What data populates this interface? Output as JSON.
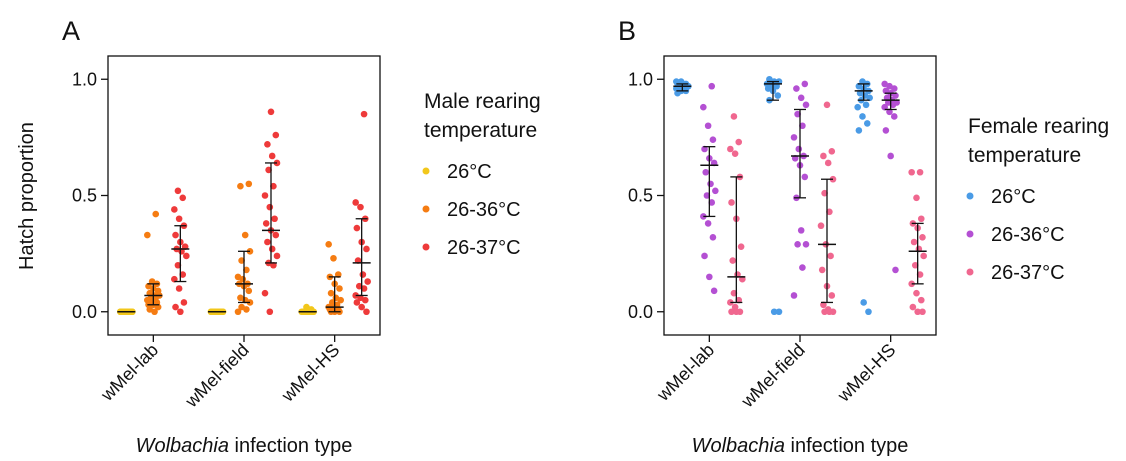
{
  "chart_data": [
    {
      "type": "scatter",
      "panel_label": "A",
      "xlabel": "Wolbachia infection type",
      "xlabel_italic_part": "Wolbachia",
      "xlabel_rest": " infection type",
      "ylabel": "Hatch proportion",
      "ylim": [
        -0.1,
        1.1
      ],
      "yticks": [
        0.0,
        0.5,
        1.0
      ],
      "ytick_labels": [
        "0.0",
        "0.5",
        "1.0"
      ],
      "categories": [
        "wMel-lab",
        "wMel-field",
        "wMel-HS"
      ],
      "legend_title": [
        "Male rearing",
        "temperature"
      ],
      "legend_placement": "right",
      "series": [
        {
          "name": "26°C",
          "color": "#f2c71b",
          "median": [
            0.0,
            0.0,
            0.0
          ],
          "iqr": [
            [
              0.0,
              0.0
            ],
            [
              0.0,
              0.0
            ],
            [
              0.0,
              0.0
            ]
          ],
          "points": [
            [
              0,
              0,
              0,
              0,
              0,
              0,
              0,
              0,
              0,
              0,
              0,
              0,
              0,
              0,
              0,
              0,
              0,
              0,
              0,
              0
            ],
            [
              0,
              0,
              0,
              0,
              0,
              0,
              0,
              0,
              0,
              0,
              0,
              0,
              0,
              0,
              0,
              0,
              0,
              0,
              0,
              0
            ],
            [
              0.02,
              0.01,
              0,
              0,
              0,
              0,
              0,
              0,
              0,
              0,
              0,
              0,
              0,
              0,
              0,
              0,
              0,
              0
            ]
          ]
        },
        {
          "name": "26-36°C",
          "color": "#f57c12",
          "median": [
            0.07,
            0.12,
            0.02
          ],
          "iqr": [
            [
              0.03,
              0.12
            ],
            [
              0.04,
              0.26
            ],
            [
              0.0,
              0.15
            ]
          ],
          "points": [
            [
              0.42,
              0.33,
              0.13,
              0.12,
              0.11,
              0.1,
              0.09,
              0.08,
              0.07,
              0.07,
              0.06,
              0.06,
              0.05,
              0.05,
              0.04,
              0.03,
              0.03,
              0.02,
              0.01,
              0.0
            ],
            [
              0.55,
              0.54,
              0.33,
              0.26,
              0.22,
              0.18,
              0.15,
              0.14,
              0.12,
              0.12,
              0.11,
              0.09,
              0.06,
              0.05,
              0.04,
              0.02,
              0.01,
              0.0
            ],
            [
              0.29,
              0.23,
              0.16,
              0.15,
              0.12,
              0.1,
              0.08,
              0.06,
              0.05,
              0.04,
              0.03,
              0.02,
              0.02,
              0.01,
              0.01,
              0.0,
              0.0,
              0.0
            ]
          ]
        },
        {
          "name": "26-37°C",
          "color": "#ee3a3a",
          "median": [
            0.27,
            0.35,
            0.21
          ],
          "iqr": [
            [
              0.13,
              0.37
            ],
            [
              0.21,
              0.64
            ],
            [
              0.07,
              0.4
            ]
          ],
          "points": [
            [
              0.52,
              0.49,
              0.44,
              0.4,
              0.37,
              0.33,
              0.3,
              0.28,
              0.27,
              0.26,
              0.24,
              0.2,
              0.16,
              0.14,
              0.1,
              0.04,
              0.02,
              0.0
            ],
            [
              0.86,
              0.76,
              0.72,
              0.67,
              0.64,
              0.61,
              0.54,
              0.5,
              0.45,
              0.4,
              0.38,
              0.35,
              0.33,
              0.3,
              0.27,
              0.24,
              0.21,
              0.2,
              0.08,
              0.0
            ],
            [
              0.85,
              0.47,
              0.45,
              0.4,
              0.36,
              0.3,
              0.27,
              0.22,
              0.16,
              0.13,
              0.11,
              0.1,
              0.07,
              0.06,
              0.05,
              0.04,
              0.02,
              0.0
            ]
          ]
        }
      ]
    },
    {
      "type": "scatter",
      "panel_label": "B",
      "xlabel": "Wolbachia infection type",
      "xlabel_italic_part": "Wolbachia",
      "xlabel_rest": " infection type",
      "ylabel": "",
      "ylim": [
        -0.1,
        1.1
      ],
      "yticks": [
        0.0,
        0.5,
        1.0
      ],
      "ytick_labels": [
        "0.0",
        "0.5",
        "1.0"
      ],
      "categories": [
        "wMel-lab",
        "wMel-field",
        "wMel-HS"
      ],
      "legend_title": [
        "Female rearing",
        "temperature"
      ],
      "legend_placement": "right",
      "series": [
        {
          "name": "26°C",
          "color": "#4a9be6",
          "median": [
            0.97,
            0.98,
            0.95
          ],
          "iqr": [
            [
              0.95,
              0.98
            ],
            [
              0.91,
              0.99
            ],
            [
              0.91,
              0.98
            ]
          ],
          "points": [
            [
              0.99,
              0.99,
              0.98,
              0.98,
              0.98,
              0.97,
              0.97,
              0.97,
              0.97,
              0.96,
              0.96,
              0.96,
              0.95,
              0.95,
              0.94,
              0.98,
              0.97,
              0.96
            ],
            [
              1.0,
              0.99,
              0.99,
              0.98,
              0.98,
              0.98,
              0.97,
              0.97,
              0.96,
              0.95,
              0.93,
              0.91,
              0.0,
              0.0
            ],
            [
              0.99,
              0.98,
              0.97,
              0.96,
              0.95,
              0.94,
              0.93,
              0.92,
              0.91,
              0.89,
              0.88,
              0.84,
              0.81,
              0.78,
              0.04,
              0.0
            ]
          ]
        },
        {
          "name": "26-36°C",
          "color": "#b450d3",
          "median": [
            0.63,
            0.67,
            0.91
          ],
          "iqr": [
            [
              0.41,
              0.71
            ],
            [
              0.49,
              0.87
            ],
            [
              0.87,
              0.94
            ]
          ],
          "points": [
            [
              0.97,
              0.88,
              0.8,
              0.74,
              0.7,
              0.66,
              0.64,
              0.6,
              0.55,
              0.52,
              0.5,
              0.47,
              0.41,
              0.38,
              0.32,
              0.24,
              0.15,
              0.09
            ],
            [
              0.98,
              0.96,
              0.92,
              0.89,
              0.85,
              0.8,
              0.75,
              0.7,
              0.67,
              0.66,
              0.63,
              0.58,
              0.49,
              0.35,
              0.29,
              0.29,
              0.19,
              0.07
            ],
            [
              0.98,
              0.97,
              0.96,
              0.95,
              0.94,
              0.93,
              0.92,
              0.91,
              0.9,
              0.9,
              0.89,
              0.88,
              0.86,
              0.84,
              0.78,
              0.67,
              0.18
            ]
          ]
        },
        {
          "name": "26-37°C",
          "color": "#f0678f",
          "median": [
            0.15,
            0.29,
            0.26
          ],
          "iqr": [
            [
              0.04,
              0.58
            ],
            [
              0.04,
              0.57
            ],
            [
              0.12,
              0.38
            ]
          ],
          "points": [
            [
              0.84,
              0.73,
              0.7,
              0.68,
              0.58,
              0.47,
              0.4,
              0.28,
              0.22,
              0.16,
              0.14,
              0.08,
              0.05,
              0.04,
              0.02,
              0.0,
              0.0,
              0.0
            ],
            [
              0.89,
              0.69,
              0.67,
              0.64,
              0.57,
              0.51,
              0.43,
              0.37,
              0.29,
              0.24,
              0.18,
              0.11,
              0.07,
              0.03,
              0.01,
              0.0,
              0.0,
              0.0
            ],
            [
              0.6,
              0.6,
              0.49,
              0.4,
              0.38,
              0.36,
              0.32,
              0.3,
              0.27,
              0.24,
              0.2,
              0.16,
              0.12,
              0.08,
              0.05,
              0.02,
              0.0,
              0.0
            ]
          ]
        }
      ]
    }
  ]
}
